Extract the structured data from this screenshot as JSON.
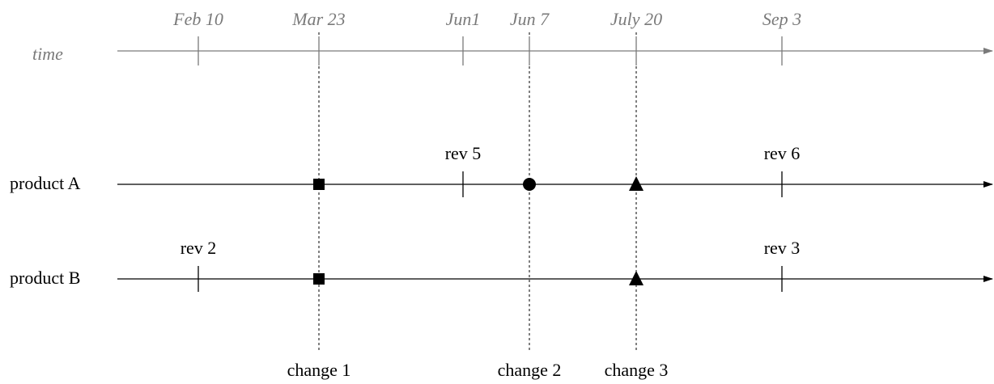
{
  "colors": {
    "time_axis": "#7a7a7a",
    "product_axis": "#000000"
  },
  "time_axis": {
    "label": "time",
    "dates": [
      "Feb 10",
      "Mar 23",
      "Jun1",
      "Jun 7",
      "July 20",
      "Sep 3"
    ]
  },
  "products": [
    {
      "label": "product A",
      "revisions": [
        {
          "label": "rev 5",
          "date": "Jun1"
        },
        {
          "label": "rev 6",
          "date": "Sep 3"
        }
      ],
      "changes": [
        {
          "change": "change 1",
          "date": "Mar 23",
          "marker": "square"
        },
        {
          "change": "change 2",
          "date": "Jun 7",
          "marker": "circle"
        },
        {
          "change": "change 3",
          "date": "July 20",
          "marker": "triangle"
        }
      ]
    },
    {
      "label": "product B",
      "revisions": [
        {
          "label": "rev 2",
          "date": "Feb 10"
        },
        {
          "label": "rev 3",
          "date": "Sep 3"
        }
      ],
      "changes": [
        {
          "change": "change 1",
          "date": "Mar 23",
          "marker": "square"
        },
        {
          "change": "change 3",
          "date": "July 20",
          "marker": "triangle"
        }
      ]
    }
  ],
  "changes": [
    {
      "label": "change 1",
      "date": "Mar 23"
    },
    {
      "label": "change 2",
      "date": "Jun 7"
    },
    {
      "label": "change 3",
      "date": "July 20"
    }
  ]
}
